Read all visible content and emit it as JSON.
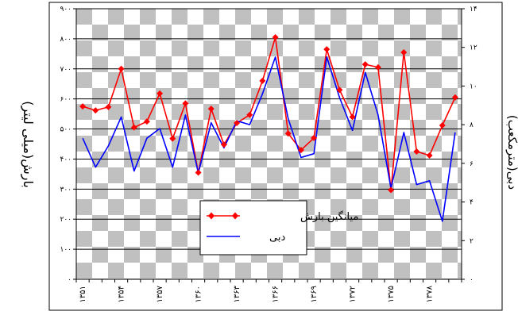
{
  "chart_data": {
    "type": "line",
    "x_tick_labels": [
      "۱۳۵۱",
      "۱۳۵۴",
      "۱۳۵۷",
      "۱۳۶۰",
      "۱۳۶۳",
      "۱۳۶۶",
      "۱۳۶۹",
      "۱۳۷۲",
      "۱۳۷۵",
      "۱۳۷۸"
    ],
    "x_tick_labels_ascii": [
      "1351",
      "1354",
      "1357",
      "1360",
      "1363",
      "1366",
      "1369",
      "1372",
      "1375",
      "1378"
    ],
    "x": [
      1351,
      1352,
      1353,
      1354,
      1355,
      1356,
      1357,
      1358,
      1359,
      1360,
      1361,
      1362,
      1363,
      1364,
      1365,
      1366,
      1367,
      1368,
      1369,
      1370,
      1371,
      1372,
      1373,
      1374,
      1375,
      1376,
      1377,
      1378,
      1379,
      1380
    ],
    "series": [
      {
        "name": "میانگین بارش",
        "axis": "left",
        "color": "#ff0000",
        "marker": "diamond",
        "values": [
          575,
          562,
          573,
          700,
          505,
          525,
          618,
          468,
          585,
          355,
          567,
          448,
          520,
          547,
          660,
          805,
          485,
          430,
          470,
          765,
          630,
          540,
          715,
          705,
          297,
          755,
          425,
          412,
          512,
          605
        ]
      },
      {
        "name": "دبی",
        "axis": "right",
        "color": "#0000ff",
        "marker": "none",
        "values": [
          7.3,
          5.8,
          6.9,
          8.4,
          5.6,
          7.3,
          7.8,
          5.8,
          8.5,
          5.5,
          8.1,
          6.8,
          8.2,
          8.0,
          9.6,
          11.5,
          8.3,
          6.3,
          6.5,
          11.5,
          9.4,
          7.7,
          10.7,
          8.5,
          4.7,
          7.6,
          4.9,
          5.1,
          3.0,
          7.6
        ]
      }
    ],
    "left_axis": {
      "label": "بارش(میلی لیتر)",
      "min": 0,
      "max": 900,
      "ticks": [
        0,
        100,
        200,
        300,
        400,
        500,
        600,
        700,
        800,
        900
      ],
      "tick_labels": [
        "۰",
        "۱۰۰",
        "۲۰۰",
        "۳۰۰",
        "۴۰۰",
        "۵۰۰",
        "۶۰۰",
        "۷۰۰",
        "۸۰۰",
        "۹۰۰"
      ]
    },
    "right_axis": {
      "label": "دبی(مترمکعب)",
      "min": 0,
      "max": 14,
      "ticks": [
        0,
        2,
        4,
        6,
        8,
        10,
        12,
        14
      ],
      "tick_labels": [
        "۰",
        "۲",
        "۴",
        "۶",
        "۸",
        "۱۰",
        "۱۲",
        "۱۴"
      ]
    },
    "grid": "horizontal",
    "background": "checkerboard-gray",
    "legend_position": "lower-center",
    "legend": [
      "میانگین بارش",
      "دبی"
    ]
  }
}
